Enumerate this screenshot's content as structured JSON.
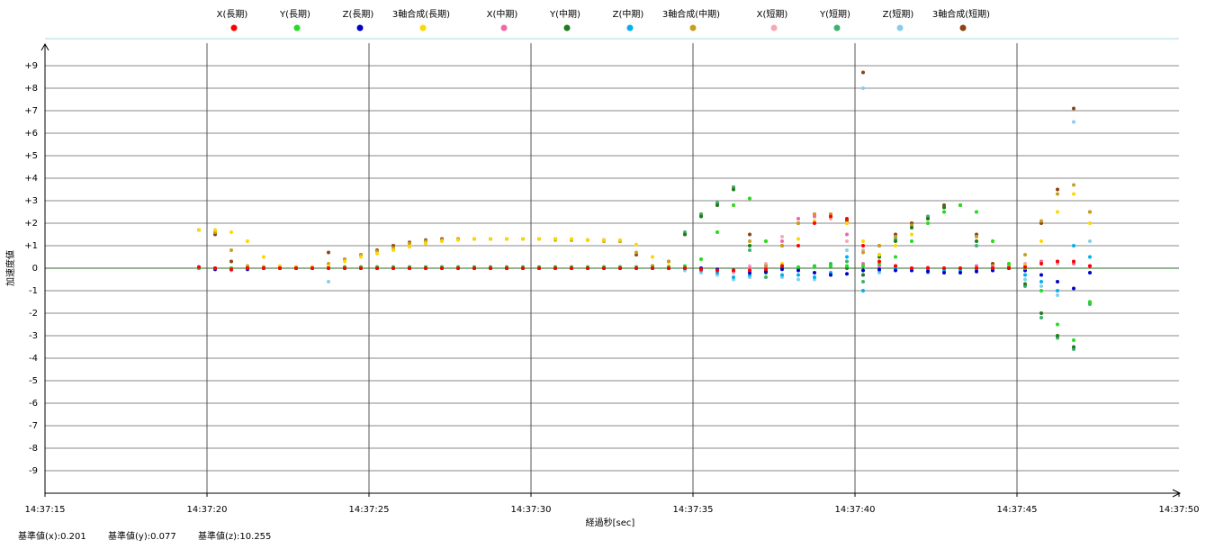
{
  "chart_data": {
    "type": "scatter",
    "x_label": "経過秒[sec]",
    "y_label": "加速度値",
    "annotations": [
      "基準値(x):0.201",
      "基準値(y):0.077",
      "基準値(z):10.255"
    ],
    "xlim": [
      53835,
      53870
    ],
    "xticks": [
      {
        "value": 53835,
        "label": "14:37:15"
      },
      {
        "value": 53840,
        "label": "14:37:20"
      },
      {
        "value": 53845,
        "label": "14:37:25"
      },
      {
        "value": 53850,
        "label": "14:37:30"
      },
      {
        "value": 53855,
        "label": "14:37:35"
      },
      {
        "value": 53860,
        "label": "14:37:40"
      },
      {
        "value": 53865,
        "label": "14:37:45"
      },
      {
        "value": 53870,
        "label": "14:37:50"
      }
    ],
    "ylim": [
      -10,
      10
    ],
    "yticks": [
      {
        "value": 9,
        "label": "+9"
      },
      {
        "value": 8,
        "label": "+8"
      },
      {
        "value": 7,
        "label": "+7"
      },
      {
        "value": 6,
        "label": "+6"
      },
      {
        "value": 5,
        "label": "+5"
      },
      {
        "value": 4,
        "label": "+4"
      },
      {
        "value": 3,
        "label": "+3"
      },
      {
        "value": 2,
        "label": "+2"
      },
      {
        "value": 1,
        "label": "+1"
      },
      0,
      -1,
      -2,
      -3,
      -4,
      -5,
      -6,
      -7,
      -8,
      -9
    ],
    "grid": true,
    "legend": "top",
    "x": [
      53839.75,
      53840.25,
      53840.75,
      53841.25,
      53841.75,
      53842.25,
      53842.75,
      53843.25,
      53843.75,
      53844.25,
      53844.75,
      53845.25,
      53845.75,
      53846.25,
      53846.75,
      53847.25,
      53847.75,
      53848.25,
      53848.75,
      53849.25,
      53849.75,
      53850.25,
      53850.75,
      53851.25,
      53851.75,
      53852.25,
      53852.75,
      53853.25,
      53853.75,
      53854.25,
      53854.75,
      53855.25,
      53855.75,
      53856.25,
      53856.75,
      53857.25,
      53857.75,
      53858.25,
      53858.75,
      53859.25,
      53859.75,
      53860.25,
      53860.75,
      53861.25,
      53861.75,
      53862.25,
      53862.75,
      53863.25,
      53863.75,
      53864.25,
      53864.75,
      53865.25,
      53865.75,
      53866.25,
      53866.75,
      53867.25
    ],
    "series": [
      {
        "name": "X(長期)",
        "color": "#ff0000",
        "values": [
          0.05,
          0,
          -0.05,
          0,
          0,
          0,
          0,
          0,
          0,
          0,
          0,
          0,
          0,
          0,
          0,
          0,
          0,
          0,
          0,
          0,
          0,
          0,
          0,
          0,
          0,
          0,
          0,
          0,
          0,
          0,
          0,
          -0.05,
          -0.1,
          -0.1,
          -0.1,
          -0.05,
          0.1,
          1.0,
          2.0,
          2.3,
          2.2,
          1.0,
          0.3,
          0.1,
          0,
          0,
          0,
          0,
          0,
          0,
          0,
          0.05,
          0.2,
          0.3,
          0.3,
          0.1
        ]
      },
      {
        "name": "Y(長期)",
        "color": "#22dd22",
        "values": [
          0,
          0,
          0,
          0,
          0,
          0,
          0,
          0,
          0,
          0.05,
          0.05,
          0.05,
          0.05,
          0.05,
          0.05,
          0.05,
          0.05,
          0.05,
          0.05,
          0.05,
          0.05,
          0.05,
          0.05,
          0.05,
          0.05,
          0.05,
          0.05,
          0.05,
          0.05,
          0.05,
          0.1,
          0.4,
          1.6,
          2.8,
          3.1,
          1.2,
          0.1,
          0.05,
          0.05,
          0.1,
          0.1,
          0.1,
          0.2,
          0.5,
          1.2,
          2.0,
          2.5,
          2.8,
          2.5,
          1.2,
          0.2,
          0,
          -1.0,
          -2.5,
          -3.2,
          -1.5
        ]
      },
      {
        "name": "Z(長期)",
        "color": "#0000cc",
        "values": [
          0.05,
          -0.05,
          -0.05,
          -0.05,
          0,
          0,
          0,
          0,
          0,
          0,
          0,
          0,
          0,
          0,
          0,
          0,
          0,
          0,
          0,
          0,
          0,
          0,
          0,
          0,
          0,
          0,
          0,
          0,
          0,
          0,
          0,
          0,
          -0.05,
          -0.1,
          -0.2,
          -0.15,
          -0.05,
          -0.1,
          -0.2,
          -0.3,
          -0.25,
          -0.1,
          -0.05,
          -0.1,
          -0.1,
          -0.15,
          -0.2,
          -0.2,
          -0.15,
          -0.1,
          0,
          -0.1,
          -0.3,
          -0.6,
          -0.9,
          -0.2
        ]
      },
      {
        "name": "3軸合成(長期)",
        "color": "#ffd700",
        "values": [
          1.7,
          1.7,
          1.6,
          1.2,
          0.5,
          0.1,
          0.05,
          0.05,
          0.1,
          0.3,
          0.5,
          0.65,
          0.8,
          0.95,
          1.1,
          1.2,
          1.25,
          1.3,
          1.3,
          1.3,
          1.3,
          1.3,
          1.3,
          1.3,
          1.25,
          1.25,
          1.25,
          1.05,
          0.5,
          0.1,
          0.05,
          0.4,
          1.6,
          2.8,
          3.1,
          1.2,
          0.2,
          1.3,
          2.1,
          2.3,
          2.0,
          1.2,
          0.6,
          1.0,
          1.5,
          2.0,
          2.5,
          2.8,
          2.5,
          1.2,
          0.2,
          0.1,
          1.2,
          2.5,
          3.3,
          2.0
        ]
      },
      {
        "name": "X(中期)",
        "color": "#ee6aa7",
        "values": [
          0,
          -0.05,
          0,
          0,
          0,
          0,
          0,
          0,
          0,
          0,
          0,
          0,
          0,
          0,
          0,
          0,
          0,
          0,
          0,
          0,
          0,
          0,
          0,
          0,
          0,
          0,
          0,
          0,
          0,
          0,
          0,
          -0.05,
          -0.1,
          -0.1,
          0,
          0,
          1.2,
          2.2,
          2.3,
          2.3,
          1.5,
          0.2,
          0.1,
          0.1,
          0,
          0,
          0,
          0,
          0.1,
          0.05,
          0,
          0.1,
          0.3,
          0.3,
          0.2,
          0.1
        ]
      },
      {
        "name": "Y(中期)",
        "color": "#1e7b1e",
        "values": [
          0,
          0,
          0,
          0,
          0,
          0,
          0,
          0,
          0.05,
          0.05,
          0.05,
          0.05,
          0.05,
          0.05,
          0.05,
          0.05,
          0.05,
          0.05,
          0.05,
          0.05,
          0.05,
          0.05,
          0.05,
          0.05,
          0.05,
          0.05,
          0.05,
          0.05,
          0.05,
          0.05,
          1.5,
          2.3,
          2.8,
          3.5,
          1.0,
          -0.2,
          0,
          0,
          0.05,
          0.1,
          0,
          -0.3,
          0.5,
          1.2,
          1.8,
          2.2,
          2.7,
          2.8,
          1.2,
          0,
          0,
          -0.7,
          -2.0,
          -3.0,
          -3.5,
          -1.5
        ]
      },
      {
        "name": "Z(中期)",
        "color": "#00b0f0",
        "values": [
          0,
          0,
          -0.05,
          0,
          0,
          0,
          0,
          0,
          0,
          0,
          0,
          0,
          0,
          0,
          0,
          0,
          0,
          0,
          0,
          0,
          0,
          0,
          0,
          0,
          0,
          0,
          0,
          0,
          0,
          0,
          0,
          -0.1,
          -0.2,
          -0.4,
          -0.3,
          0,
          -0.3,
          -0.3,
          -0.4,
          -0.2,
          0.5,
          -1.0,
          -0.1,
          0,
          -0.1,
          -0.1,
          -0.1,
          -0.1,
          -0.05,
          0,
          0,
          -0.3,
          -0.6,
          -1.0,
          1.0,
          0.5
        ]
      },
      {
        "name": "3軸合成(中期)",
        "color": "#c8a020",
        "values": [
          1.7,
          1.6,
          0.8,
          0.1,
          0.05,
          0.05,
          0.05,
          0.05,
          0.2,
          0.4,
          0.6,
          0.75,
          0.9,
          1.1,
          1.2,
          1.25,
          1.3,
          1.3,
          1.3,
          1.3,
          1.3,
          1.3,
          1.25,
          1.25,
          1.25,
          1.2,
          1.2,
          0.7,
          0.1,
          0.3,
          1.5,
          2.3,
          2.8,
          3.5,
          1.2,
          0.1,
          1.0,
          2.0,
          2.4,
          2.4,
          2.0,
          0.7,
          1.0,
          1.4,
          1.9,
          2.2,
          2.7,
          2.8,
          1.4,
          0.1,
          0.1,
          0.6,
          2.1,
          3.3,
          3.7,
          2.5
        ]
      },
      {
        "name": "X(短期)",
        "color": "#f5a9b8",
        "values": [
          0,
          0,
          -0.1,
          0,
          0,
          0,
          0,
          0,
          0,
          0,
          0,
          0,
          0,
          0,
          0,
          0,
          0,
          0,
          0,
          0,
          0,
          0,
          0,
          0,
          0,
          0,
          0,
          0,
          0,
          0,
          0,
          -0.1,
          -0.1,
          -0.2,
          0.1,
          0.2,
          1.4,
          2.2,
          2.3,
          2.2,
          1.2,
          0.8,
          0.1,
          0.1,
          0,
          0.05,
          0,
          0,
          0.1,
          0.1,
          0.05,
          0.2,
          0.3,
          0.2,
          0.3,
          0.1
        ]
      },
      {
        "name": "Y(短期)",
        "color": "#3cb371",
        "values": [
          0,
          0,
          0,
          0,
          0,
          0,
          0,
          0,
          0.05,
          0.05,
          0.05,
          0.05,
          0.05,
          0.05,
          0.05,
          0.05,
          0.05,
          0.05,
          0.05,
          0.05,
          0.05,
          0.05,
          0.05,
          0.05,
          0.05,
          0.05,
          0.05,
          0.05,
          0.05,
          0.05,
          1.6,
          2.4,
          2.9,
          3.6,
          0.8,
          -0.4,
          0.1,
          0,
          0.1,
          0.2,
          0.3,
          -0.6,
          0.6,
          1.3,
          1.9,
          2.3,
          2.7,
          2.8,
          1.0,
          -0.1,
          0.1,
          -0.8,
          -2.2,
          -3.1,
          -3.6,
          -1.6
        ]
      },
      {
        "name": "Z(短期)",
        "color": "#87ceeb",
        "values": [
          0,
          0,
          -0.1,
          0,
          0,
          0,
          0,
          0,
          -0.6,
          0,
          0,
          0,
          0,
          0,
          0,
          0,
          0,
          0,
          0,
          0,
          0,
          0,
          0,
          0,
          0,
          0,
          0,
          0,
          0,
          0,
          -0.1,
          -0.2,
          -0.3,
          -0.5,
          -0.4,
          -0.1,
          -0.4,
          -0.5,
          -0.5,
          -0.3,
          0.8,
          8.0,
          -0.2,
          0.1,
          -0.1,
          -0.2,
          -0.1,
          -0.1,
          -0.1,
          0,
          0.1,
          -0.5,
          -0.8,
          -1.2,
          6.5,
          1.2
        ]
      },
      {
        "name": "3軸合成(短期)",
        "color": "#8b4513",
        "values": [
          1.7,
          1.5,
          0.3,
          0.05,
          0.05,
          0.05,
          0.05,
          0.05,
          0.7,
          0.4,
          0.6,
          0.8,
          1.0,
          1.15,
          1.25,
          1.3,
          1.3,
          1.3,
          1.3,
          1.3,
          1.3,
          1.3,
          1.3,
          1.25,
          1.25,
          1.25,
          1.2,
          0.6,
          0.1,
          0.3,
          1.5,
          2.4,
          2.9,
          3.6,
          1.5,
          0.1,
          1.0,
          2.0,
          2.4,
          2.4,
          2.1,
          8.7,
          1.0,
          1.5,
          2.0,
          2.3,
          2.8,
          2.8,
          1.5,
          0.2,
          0.1,
          0.1,
          2.0,
          3.5,
          7.1,
          2.5
        ]
      }
    ]
  }
}
